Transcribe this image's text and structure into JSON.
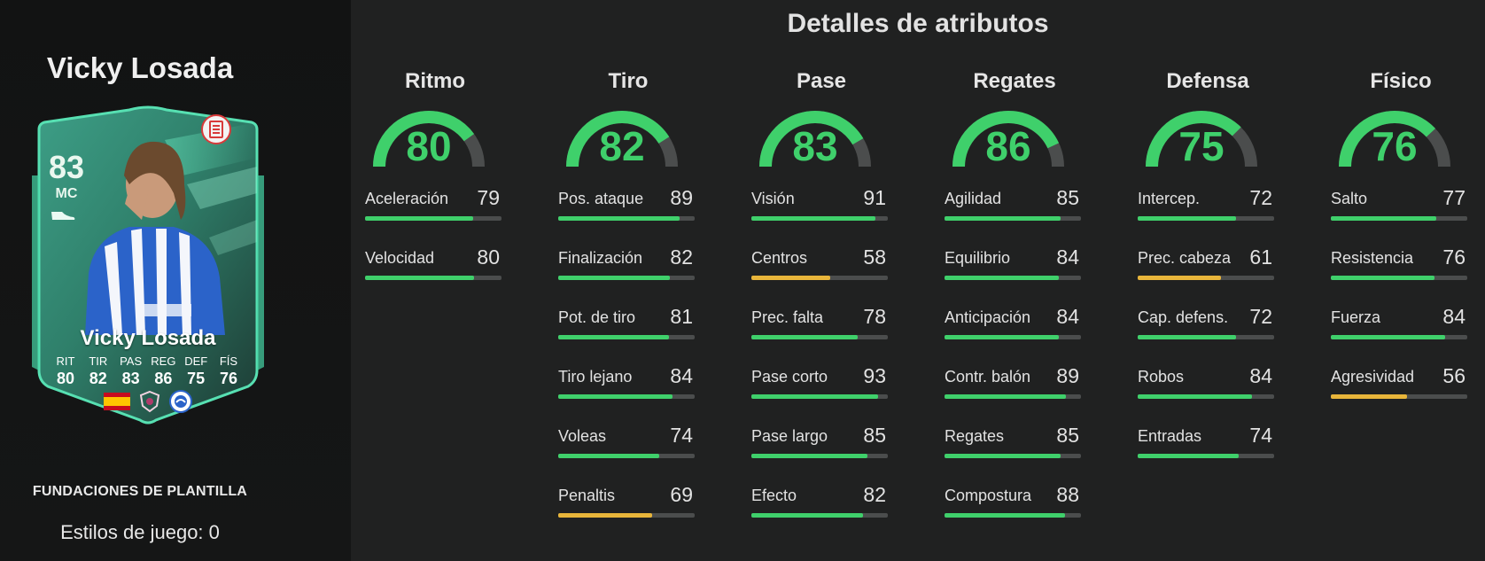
{
  "header": {
    "title": "Detalles de atributos"
  },
  "player": {
    "name": "Vicky Losada",
    "card_name": "Vicky Losada",
    "rating": "83",
    "position": "MC",
    "squad_label": "FUNDACIONES DE PLANTILLA",
    "playstyles": "Estilos de juego: 0",
    "card_stats": [
      {
        "label": "RIT",
        "value": "80"
      },
      {
        "label": "TIR",
        "value": "82"
      },
      {
        "label": "PAS",
        "value": "83"
      },
      {
        "label": "REG",
        "value": "86"
      },
      {
        "label": "DEF",
        "value": "75"
      },
      {
        "label": "FÍS",
        "value": "76"
      }
    ],
    "icons": [
      "boot-icon",
      "document-icon",
      "spain-flag-icon",
      "league-badge-icon",
      "club-badge-icon"
    ]
  },
  "colors": {
    "green": "#3fd06b",
    "yellow": "#e8b53a",
    "track": "#4b4d4d",
    "card_accent": "#46d6a6"
  },
  "categories": [
    {
      "name": "Ritmo",
      "value": "80",
      "attributes": [
        {
          "name": "Aceleración",
          "value": "79"
        },
        {
          "name": "Velocidad",
          "value": "80"
        }
      ]
    },
    {
      "name": "Tiro",
      "value": "82",
      "attributes": [
        {
          "name": "Pos. ataque",
          "value": "89"
        },
        {
          "name": "Finalización",
          "value": "82"
        },
        {
          "name": "Pot. de tiro",
          "value": "81"
        },
        {
          "name": "Tiro lejano",
          "value": "84"
        },
        {
          "name": "Voleas",
          "value": "74"
        },
        {
          "name": "Penaltis",
          "value": "69"
        }
      ]
    },
    {
      "name": "Pase",
      "value": "83",
      "attributes": [
        {
          "name": "Visión",
          "value": "91"
        },
        {
          "name": "Centros",
          "value": "58"
        },
        {
          "name": "Prec. falta",
          "value": "78"
        },
        {
          "name": "Pase corto",
          "value": "93"
        },
        {
          "name": "Pase largo",
          "value": "85"
        },
        {
          "name": "Efecto",
          "value": "82"
        }
      ]
    },
    {
      "name": "Regates",
      "value": "86",
      "attributes": [
        {
          "name": "Agilidad",
          "value": "85"
        },
        {
          "name": "Equilibrio",
          "value": "84"
        },
        {
          "name": "Anticipación",
          "value": "84"
        },
        {
          "name": "Contr. balón",
          "value": "89"
        },
        {
          "name": "Regates",
          "value": "85"
        },
        {
          "name": "Compostura",
          "value": "88"
        }
      ]
    },
    {
      "name": "Defensa",
      "value": "75",
      "attributes": [
        {
          "name": "Intercep.",
          "value": "72"
        },
        {
          "name": "Prec. cabeza",
          "value": "61"
        },
        {
          "name": "Cap. defens.",
          "value": "72"
        },
        {
          "name": "Robos",
          "value": "84"
        },
        {
          "name": "Entradas",
          "value": "74"
        }
      ]
    },
    {
      "name": "Físico",
      "value": "76",
      "attributes": [
        {
          "name": "Salto",
          "value": "77"
        },
        {
          "name": "Resistencia",
          "value": "76"
        },
        {
          "name": "Fuerza",
          "value": "84"
        },
        {
          "name": "Agresividad",
          "value": "56"
        }
      ]
    }
  ]
}
